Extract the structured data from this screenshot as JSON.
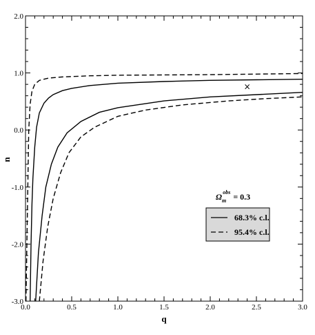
{
  "chart_data": {
    "type": "line",
    "xlabel": "q",
    "ylabel": "n",
    "xlim": [
      0.0,
      3.0
    ],
    "ylim": [
      -3.0,
      2.0
    ],
    "x_ticks": [
      "0.0",
      "0.5",
      "1.0",
      "1.5",
      "2.0",
      "2.5",
      "3.0"
    ],
    "y_ticks": [
      "-3.0",
      "-2.0",
      "-1.0",
      "0.0",
      "1.0",
      "2.0"
    ],
    "x_tick_values": [
      0.0,
      0.5,
      1.0,
      1.5,
      2.0,
      2.5,
      3.0
    ],
    "y_tick_values": [
      -3.0,
      -2.0,
      -1.0,
      0.0,
      1.0,
      2.0
    ],
    "grid": false,
    "annotation": {
      "omega_symbol": "Ω",
      "omega_sub": "m",
      "omega_sup": "obs",
      "omega_value": "= 0.3"
    },
    "legend": {
      "placement": "lower-right",
      "entries": [
        {
          "label": "68.3% c.l.",
          "style": "solid"
        },
        {
          "label": "95.4% c.l.",
          "style": "dashed"
        }
      ]
    },
    "marker": {
      "symbol": "×",
      "x": 2.4,
      "y": 0.76
    },
    "series": [
      {
        "style": "solid",
        "points": [
          [
            0.05,
            -3.0
          ],
          [
            0.06,
            -2.0
          ],
          [
            0.07,
            -1.3
          ],
          [
            0.08,
            -0.85
          ],
          [
            0.1,
            -0.3
          ],
          [
            0.12,
            0.05
          ],
          [
            0.15,
            0.3
          ],
          [
            0.2,
            0.47
          ],
          [
            0.25,
            0.56
          ],
          [
            0.3,
            0.62
          ],
          [
            0.4,
            0.69
          ],
          [
            0.5,
            0.73
          ],
          [
            0.7,
            0.78
          ],
          [
            1.0,
            0.82
          ],
          [
            1.5,
            0.85
          ],
          [
            2.0,
            0.87
          ],
          [
            2.5,
            0.88
          ],
          [
            3.0,
            0.89
          ]
        ]
      },
      {
        "style": "solid",
        "points": [
          [
            0.11,
            -3.0
          ],
          [
            0.14,
            -2.15
          ],
          [
            0.18,
            -1.5
          ],
          [
            0.22,
            -1.0
          ],
          [
            0.28,
            -0.6
          ],
          [
            0.35,
            -0.3
          ],
          [
            0.45,
            -0.05
          ],
          [
            0.6,
            0.15
          ],
          [
            0.8,
            0.31
          ],
          [
            1.0,
            0.39
          ],
          [
            1.5,
            0.51
          ],
          [
            2.0,
            0.58
          ],
          [
            2.5,
            0.62
          ],
          [
            3.0,
            0.66
          ]
        ]
      },
      {
        "style": "dashed",
        "points": [
          [
            0.005,
            -3.0
          ],
          [
            0.015,
            -2.0
          ],
          [
            0.025,
            -1.0
          ],
          [
            0.035,
            0.0
          ],
          [
            0.05,
            0.45
          ],
          [
            0.07,
            0.68
          ],
          [
            0.1,
            0.8
          ],
          [
            0.15,
            0.87
          ],
          [
            0.25,
            0.91
          ],
          [
            0.4,
            0.93
          ],
          [
            0.7,
            0.95
          ],
          [
            1.0,
            0.96
          ],
          [
            2.0,
            0.97
          ],
          [
            3.0,
            0.99
          ]
        ]
      },
      {
        "style": "dashed",
        "points": [
          [
            0.15,
            -3.0
          ],
          [
            0.19,
            -2.3
          ],
          [
            0.24,
            -1.7
          ],
          [
            0.3,
            -1.2
          ],
          [
            0.38,
            -0.75
          ],
          [
            0.47,
            -0.4
          ],
          [
            0.6,
            -0.12
          ],
          [
            0.75,
            0.05
          ],
          [
            1.0,
            0.24
          ],
          [
            1.3,
            0.35
          ],
          [
            1.7,
            0.44
          ],
          [
            2.2,
            0.51
          ],
          [
            2.6,
            0.55
          ],
          [
            3.0,
            0.58
          ]
        ]
      }
    ]
  }
}
